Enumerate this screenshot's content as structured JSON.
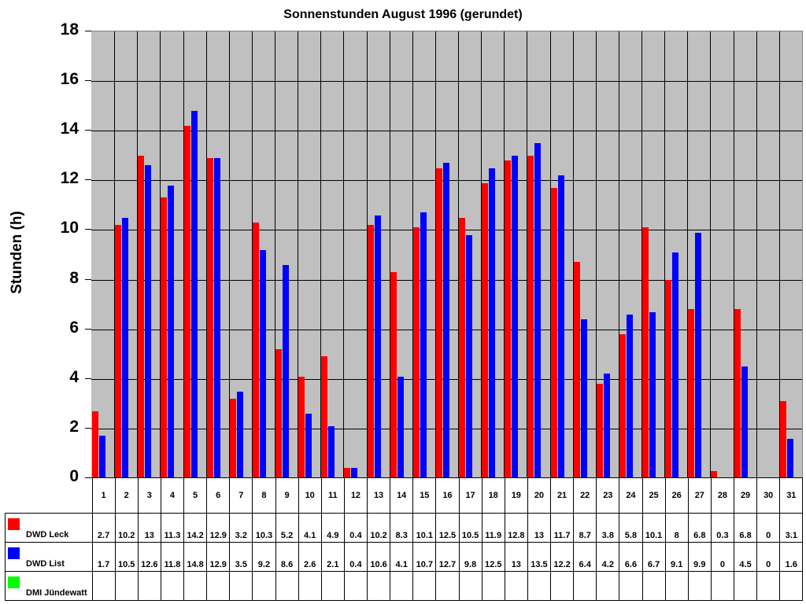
{
  "chart_data": {
    "type": "bar",
    "title": "Sonnenstunden August 1996 (gerundet)",
    "xlabel": "",
    "ylabel": "Stunden (h)",
    "ylim": [
      0,
      18
    ],
    "yticks": [
      0,
      2,
      4,
      6,
      8,
      10,
      12,
      14,
      16,
      18
    ],
    "grid": true,
    "legend_position": "bottom-table",
    "categories": [
      "1",
      "2",
      "3",
      "4",
      "5",
      "6",
      "7",
      "8",
      "9",
      "10",
      "11",
      "12",
      "13",
      "14",
      "15",
      "16",
      "17",
      "18",
      "19",
      "20",
      "21",
      "22",
      "23",
      "24",
      "25",
      "26",
      "27",
      "28",
      "29",
      "30",
      "31"
    ],
    "series": [
      {
        "name": "DWD Leck",
        "color": "#ff0000",
        "values": [
          2.7,
          10.2,
          13,
          11.3,
          14.2,
          12.9,
          3.2,
          10.3,
          5.2,
          4.1,
          4.9,
          0.4,
          10.2,
          8.3,
          10.1,
          12.5,
          10.5,
          11.9,
          12.8,
          13,
          11.7,
          8.7,
          3.8,
          5.8,
          10.1,
          8,
          6.8,
          0.3,
          6.8,
          0,
          3.1
        ]
      },
      {
        "name": "DWD List",
        "color": "#0000ff",
        "values": [
          1.7,
          10.5,
          12.6,
          11.8,
          14.8,
          12.9,
          3.5,
          9.2,
          8.6,
          2.6,
          2.1,
          0.4,
          10.6,
          4.1,
          10.7,
          12.7,
          9.8,
          12.5,
          13,
          13.5,
          12.2,
          6.4,
          4.2,
          6.6,
          6.7,
          9.1,
          9.9,
          0,
          4.5,
          0,
          1.6
        ]
      },
      {
        "name": "DMI Jündewatt",
        "color": "#00ff00",
        "values": [
          null,
          null,
          null,
          null,
          null,
          null,
          null,
          null,
          null,
          null,
          null,
          null,
          null,
          null,
          null,
          null,
          null,
          null,
          null,
          null,
          null,
          null,
          null,
          null,
          null,
          null,
          null,
          null,
          null,
          null,
          null
        ]
      }
    ],
    "table_values": {
      "DWD Leck": [
        "2.7",
        "10.2",
        "13",
        "11.3",
        "14.2",
        "12.9",
        "3.2",
        "10.3",
        "5.2",
        "4.1",
        "4.9",
        "0.4",
        "10.2",
        "8.3",
        "10.1",
        "12.5",
        "10.5",
        "11.9",
        "12.8",
        "13",
        "11.7",
        "8.7",
        "3.8",
        "5.8",
        "10.1",
        "8",
        "6.8",
        "0.3",
        "6.8",
        "0",
        "3.1"
      ],
      "DWD List": [
        "1.7",
        "10.5",
        "12.6",
        "11.8",
        "14.8",
        "12.9",
        "3.5",
        "9.2",
        "8.6",
        "2.6",
        "2.1",
        "0.4",
        "10.6",
        "4.1",
        "10.7",
        "12.7",
        "9.8",
        "12.5",
        "13",
        "13.5",
        "12.2",
        "6.4",
        "4.2",
        "6.6",
        "6.7",
        "9.1",
        "9.9",
        "0",
        "4.5",
        "0",
        "1.6"
      ],
      "DMI Jündewatt": [
        "",
        "",
        "",
        "",
        "",
        "",
        "",
        "",
        "",
        "",
        "",
        "",
        "",
        "",
        "",
        "",
        "",
        "",
        "",
        "",
        "",
        "",
        "",
        "",
        "",
        "",
        "",
        "",
        "",
        "",
        ""
      ]
    }
  },
  "colors": {
    "plot_bg": "#c0c0c0",
    "grid": "#000000"
  }
}
